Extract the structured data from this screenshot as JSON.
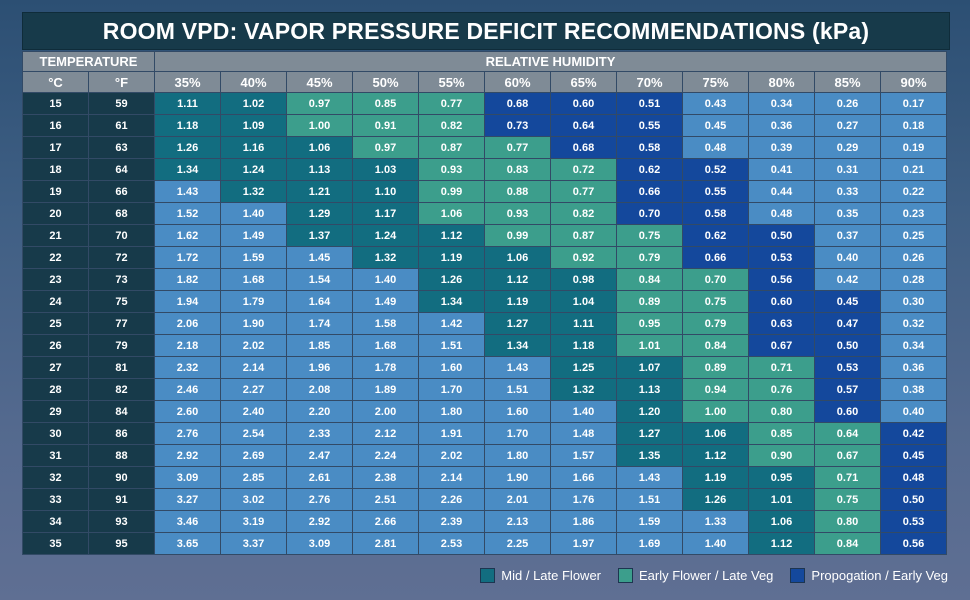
{
  "title": "ROOM VPD: VAPOR PRESSURE DEFICIT RECOMMENDATIONS  (kPa)",
  "headers": {
    "temperature": "TEMPERATURE",
    "humidity": "RELATIVE HUMIDITY",
    "celsius": "°C",
    "fahrenheit": "°F"
  },
  "legend": [
    {
      "key": "M",
      "label": "Mid / Late Flower",
      "color": "#126d80"
    },
    {
      "key": "E",
      "label": "Early Flower / Late Veg",
      "color": "#3c9e8c"
    },
    {
      "key": "P",
      "label": "Propogation / Early Veg",
      "color": "#14489c"
    }
  ],
  "colors": {
    "M": "#126d80",
    "E": "#3c9e8c",
    "P": "#14489c",
    "N": "#4a8cc4",
    "header": "#7f8b96",
    "temp_cell": "#173a4a",
    "title_bg": "#173a4a"
  },
  "chart_data": {
    "type": "table",
    "title": "ROOM VPD: VAPOR PRESSURE DEFICIT RECOMMENDATIONS  (kPa)",
    "humidity": [
      "35%",
      "40%",
      "45%",
      "50%",
      "55%",
      "60%",
      "65%",
      "70%",
      "75%",
      "80%",
      "85%",
      "90%"
    ],
    "rows": [
      {
        "c": "15",
        "f": "59",
        "v": [
          "1.11",
          "1.02",
          "0.97",
          "0.85",
          "0.77",
          "0.68",
          "0.60",
          "0.51",
          "0.43",
          "0.34",
          "0.26",
          "0.17"
        ],
        "z": "MMEEEPPPNNNN"
      },
      {
        "c": "16",
        "f": "61",
        "v": [
          "1.18",
          "1.09",
          "1.00",
          "0.91",
          "0.82",
          "0.73",
          "0.64",
          "0.55",
          "0.45",
          "0.36",
          "0.27",
          "0.18"
        ],
        "z": "MMEEEPPPNNNN"
      },
      {
        "c": "17",
        "f": "63",
        "v": [
          "1.26",
          "1.16",
          "1.06",
          "0.97",
          "0.87",
          "0.77",
          "0.68",
          "0.58",
          "0.48",
          "0.39",
          "0.29",
          "0.19"
        ],
        "z": "MMMEEEPPNNNN"
      },
      {
        "c": "18",
        "f": "64",
        "v": [
          "1.34",
          "1.24",
          "1.13",
          "1.03",
          "0.93",
          "0.83",
          "0.72",
          "0.62",
          "0.52",
          "0.41",
          "0.31",
          "0.21"
        ],
        "z": "MMMMEEEPPNNN"
      },
      {
        "c": "19",
        "f": "66",
        "v": [
          "1.43",
          "1.32",
          "1.21",
          "1.10",
          "0.99",
          "0.88",
          "0.77",
          "0.66",
          "0.55",
          "0.44",
          "0.33",
          "0.22"
        ],
        "z": "NMMMEEEPPNNN"
      },
      {
        "c": "20",
        "f": "68",
        "v": [
          "1.52",
          "1.40",
          "1.29",
          "1.17",
          "1.06",
          "0.93",
          "0.82",
          "0.70",
          "0.58",
          "0.48",
          "0.35",
          "0.23"
        ],
        "z": "NNMMEEEPPNNN"
      },
      {
        "c": "21",
        "f": "70",
        "v": [
          "1.62",
          "1.49",
          "1.37",
          "1.24",
          "1.12",
          "0.99",
          "0.87",
          "0.75",
          "0.62",
          "0.50",
          "0.37",
          "0.25"
        ],
        "z": "NNMMMEEEPPNN"
      },
      {
        "c": "22",
        "f": "72",
        "v": [
          "1.72",
          "1.59",
          "1.45",
          "1.32",
          "1.19",
          "1.06",
          "0.92",
          "0.79",
          "0.66",
          "0.53",
          "0.40",
          "0.26"
        ],
        "z": "NNNMMMEEPPNN"
      },
      {
        "c": "23",
        "f": "73",
        "v": [
          "1.82",
          "1.68",
          "1.54",
          "1.40",
          "1.26",
          "1.12",
          "0.98",
          "0.84",
          "0.70",
          "0.56",
          "0.42",
          "0.28"
        ],
        "z": "NNNNMMMEEPNN"
      },
      {
        "c": "24",
        "f": "75",
        "v": [
          "1.94",
          "1.79",
          "1.64",
          "1.49",
          "1.34",
          "1.19",
          "1.04",
          "0.89",
          "0.75",
          "0.60",
          "0.45",
          "0.30"
        ],
        "z": "NNNNMMMEEPPN"
      },
      {
        "c": "25",
        "f": "77",
        "v": [
          "2.06",
          "1.90",
          "1.74",
          "1.58",
          "1.42",
          "1.27",
          "1.11",
          "0.95",
          "0.79",
          "0.63",
          "0.47",
          "0.32"
        ],
        "z": "NNNNNMMEEPPN"
      },
      {
        "c": "26",
        "f": "79",
        "v": [
          "2.18",
          "2.02",
          "1.85",
          "1.68",
          "1.51",
          "1.34",
          "1.18",
          "1.01",
          "0.84",
          "0.67",
          "0.50",
          "0.34"
        ],
        "z": "NNNNNMMEEPPN"
      },
      {
        "c": "27",
        "f": "81",
        "v": [
          "2.32",
          "2.14",
          "1.96",
          "1.78",
          "1.60",
          "1.43",
          "1.25",
          "1.07",
          "0.89",
          "0.71",
          "0.53",
          "0.36"
        ],
        "z": "NNNNNNMMEEPN"
      },
      {
        "c": "28",
        "f": "82",
        "v": [
          "2.46",
          "2.27",
          "2.08",
          "1.89",
          "1.70",
          "1.51",
          "1.32",
          "1.13",
          "0.94",
          "0.76",
          "0.57",
          "0.38"
        ],
        "z": "NNNNNNMMEEPN"
      },
      {
        "c": "29",
        "f": "84",
        "v": [
          "2.60",
          "2.40",
          "2.20",
          "2.00",
          "1.80",
          "1.60",
          "1.40",
          "1.20",
          "1.00",
          "0.80",
          "0.60",
          "0.40"
        ],
        "z": "NNNNNNNMEEPN"
      },
      {
        "c": "30",
        "f": "86",
        "v": [
          "2.76",
          "2.54",
          "2.33",
          "2.12",
          "1.91",
          "1.70",
          "1.48",
          "1.27",
          "1.06",
          "0.85",
          "0.64",
          "0.42"
        ],
        "z": "NNNNNNNMMEEP"
      },
      {
        "c": "31",
        "f": "88",
        "v": [
          "2.92",
          "2.69",
          "2.47",
          "2.24",
          "2.02",
          "1.80",
          "1.57",
          "1.35",
          "1.12",
          "0.90",
          "0.67",
          "0.45"
        ],
        "z": "NNNNNNNMMEEP"
      },
      {
        "c": "32",
        "f": "90",
        "v": [
          "3.09",
          "2.85",
          "2.61",
          "2.38",
          "2.14",
          "1.90",
          "1.66",
          "1.43",
          "1.19",
          "0.95",
          "0.71",
          "0.48"
        ],
        "z": "NNNNNNNNMMEP"
      },
      {
        "c": "33",
        "f": "91",
        "v": [
          "3.27",
          "3.02",
          "2.76",
          "2.51",
          "2.26",
          "2.01",
          "1.76",
          "1.51",
          "1.26",
          "1.01",
          "0.75",
          "0.50"
        ],
        "z": "NNNNNNNNMMEP"
      },
      {
        "c": "34",
        "f": "93",
        "v": [
          "3.46",
          "3.19",
          "2.92",
          "2.66",
          "2.39",
          "2.13",
          "1.86",
          "1.59",
          "1.33",
          "1.06",
          "0.80",
          "0.53"
        ],
        "z": "NNNNNNNNNMEP"
      },
      {
        "c": "35",
        "f": "95",
        "v": [
          "3.65",
          "3.37",
          "3.09",
          "2.81",
          "2.53",
          "2.25",
          "1.97",
          "1.69",
          "1.40",
          "1.12",
          "0.84",
          "0.56"
        ],
        "z": "NNNNNNNNNMEP"
      }
    ]
  }
}
